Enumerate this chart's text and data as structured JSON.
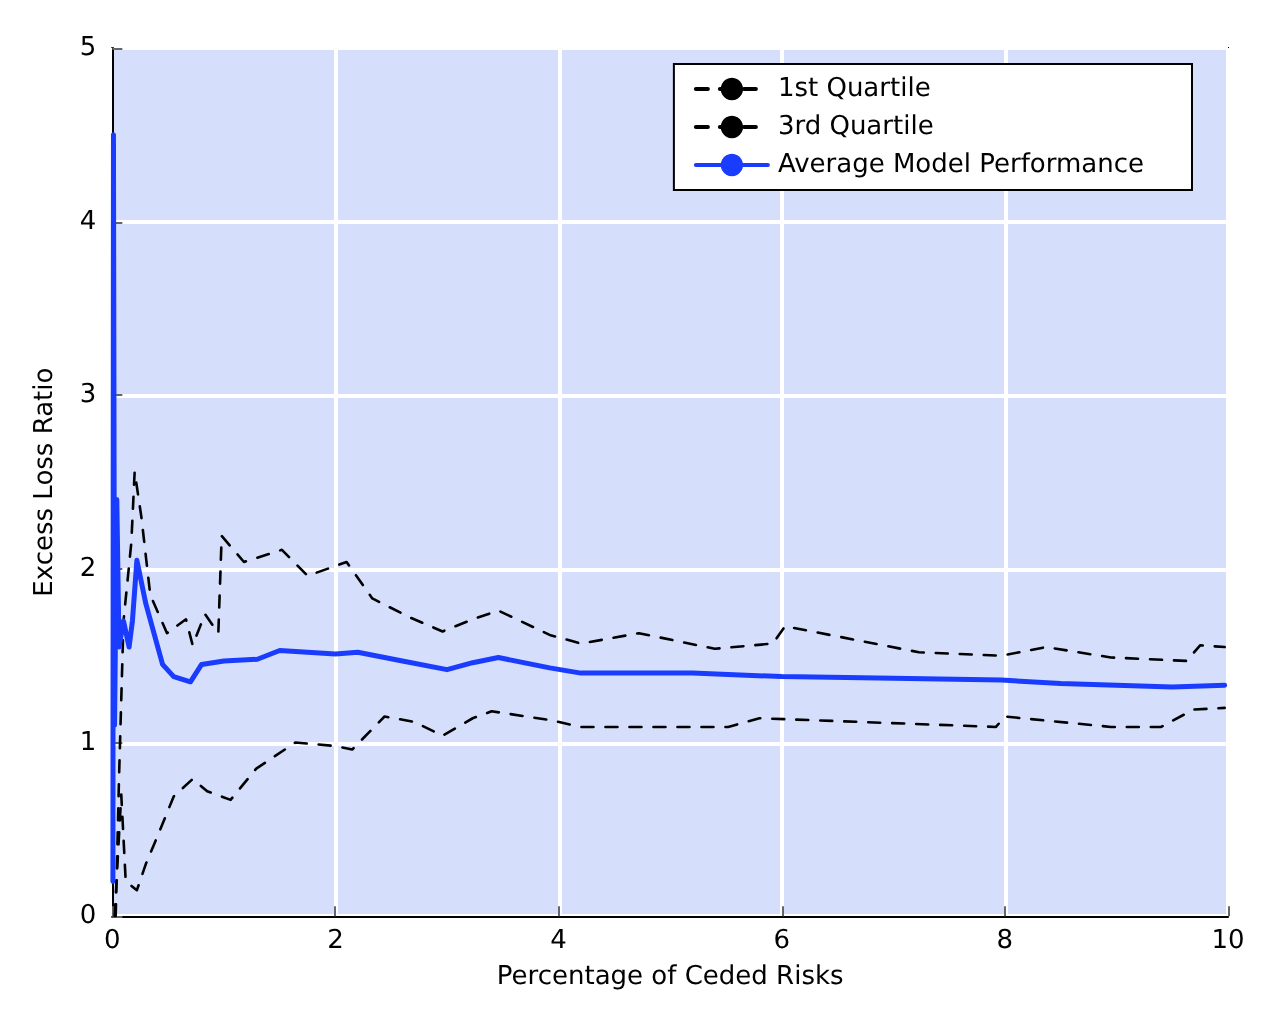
{
  "chart_data": {
    "type": "line",
    "xlabel": "Percentage of Ceded Risks",
    "ylabel": "Excess Loss Ratio",
    "xlim": [
      0,
      10
    ],
    "xticks": [
      0,
      2,
      4,
      6,
      8,
      10
    ],
    "ylim": [
      0,
      5
    ],
    "yticks": [
      0,
      1,
      2,
      3,
      4,
      5
    ],
    "grid": true,
    "legend": "top right",
    "marker": "none",
    "series": [
      {
        "name": "1st Quartile",
        "color": "#000000",
        "line_style": "dashed",
        "x": [
          0.02,
          0.08,
          0.12,
          0.22,
          0.3,
          0.43,
          0.55,
          0.72,
          0.85,
          1.06,
          1.29,
          1.64,
          2.0,
          2.15,
          2.44,
          2.7,
          2.96,
          3.23,
          3.4,
          3.92,
          4.2,
          5.52,
          5.8,
          7.92,
          8.0,
          8.95,
          9.4,
          9.69,
          9.97
        ],
        "values": [
          0,
          0.7,
          0.2,
          0.15,
          0.3,
          0.5,
          0.69,
          0.79,
          0.72,
          0.67,
          0.85,
          1.0,
          0.98,
          0.96,
          1.15,
          1.12,
          1.04,
          1.14,
          1.18,
          1.13,
          1.09,
          1.09,
          1.14,
          1.09,
          1.15,
          1.09,
          1.09,
          1.19,
          1.2
        ]
      },
      {
        "name": "3rd Quartile",
        "color": "#000000",
        "line_style": "dashed",
        "x": [
          0.03,
          0.06,
          0.1,
          0.17,
          0.2,
          0.26,
          0.34,
          0.49,
          0.66,
          0.72,
          0.83,
          0.95,
          0.98,
          1.18,
          1.52,
          1.75,
          2.1,
          2.33,
          2.67,
          2.96,
          3.23,
          3.46,
          3.92,
          4.2,
          4.72,
          5.4,
          5.92,
          6.03,
          7.23,
          7.97,
          8.37,
          8.95,
          9.63,
          9.75,
          9.97
        ],
        "values": [
          0,
          0.8,
          1.7,
          2.15,
          2.56,
          2.3,
          1.85,
          1.63,
          1.71,
          1.56,
          1.74,
          1.63,
          2.19,
          2.04,
          2.11,
          1.96,
          2.04,
          1.83,
          1.72,
          1.64,
          1.71,
          1.76,
          1.62,
          1.57,
          1.63,
          1.54,
          1.57,
          1.67,
          1.52,
          1.5,
          1.55,
          1.49,
          1.47,
          1.56,
          1.55
        ]
      },
      {
        "name": "Average Model Performance",
        "color": "#1a3cff",
        "line_style": "solid",
        "x": [
          0.005,
          0.01,
          0.02,
          0.04,
          0.06,
          0.1,
          0.15,
          0.18,
          0.22,
          0.3,
          0.45,
          0.55,
          0.7,
          0.8,
          1.0,
          1.3,
          1.5,
          2.0,
          2.2,
          2.6,
          3.0,
          3.23,
          3.46,
          3.92,
          4.2,
          5.2,
          6.0,
          7.0,
          7.97,
          8.5,
          9.0,
          9.5,
          9.97
        ],
        "values": [
          0.2,
          4.5,
          1.1,
          2.4,
          1.55,
          1.7,
          1.55,
          1.7,
          2.05,
          1.8,
          1.45,
          1.38,
          1.35,
          1.45,
          1.47,
          1.48,
          1.53,
          1.51,
          1.52,
          1.47,
          1.42,
          1.46,
          1.49,
          1.43,
          1.4,
          1.4,
          1.38,
          1.37,
          1.36,
          1.34,
          1.33,
          1.32,
          1.33
        ]
      }
    ]
  }
}
